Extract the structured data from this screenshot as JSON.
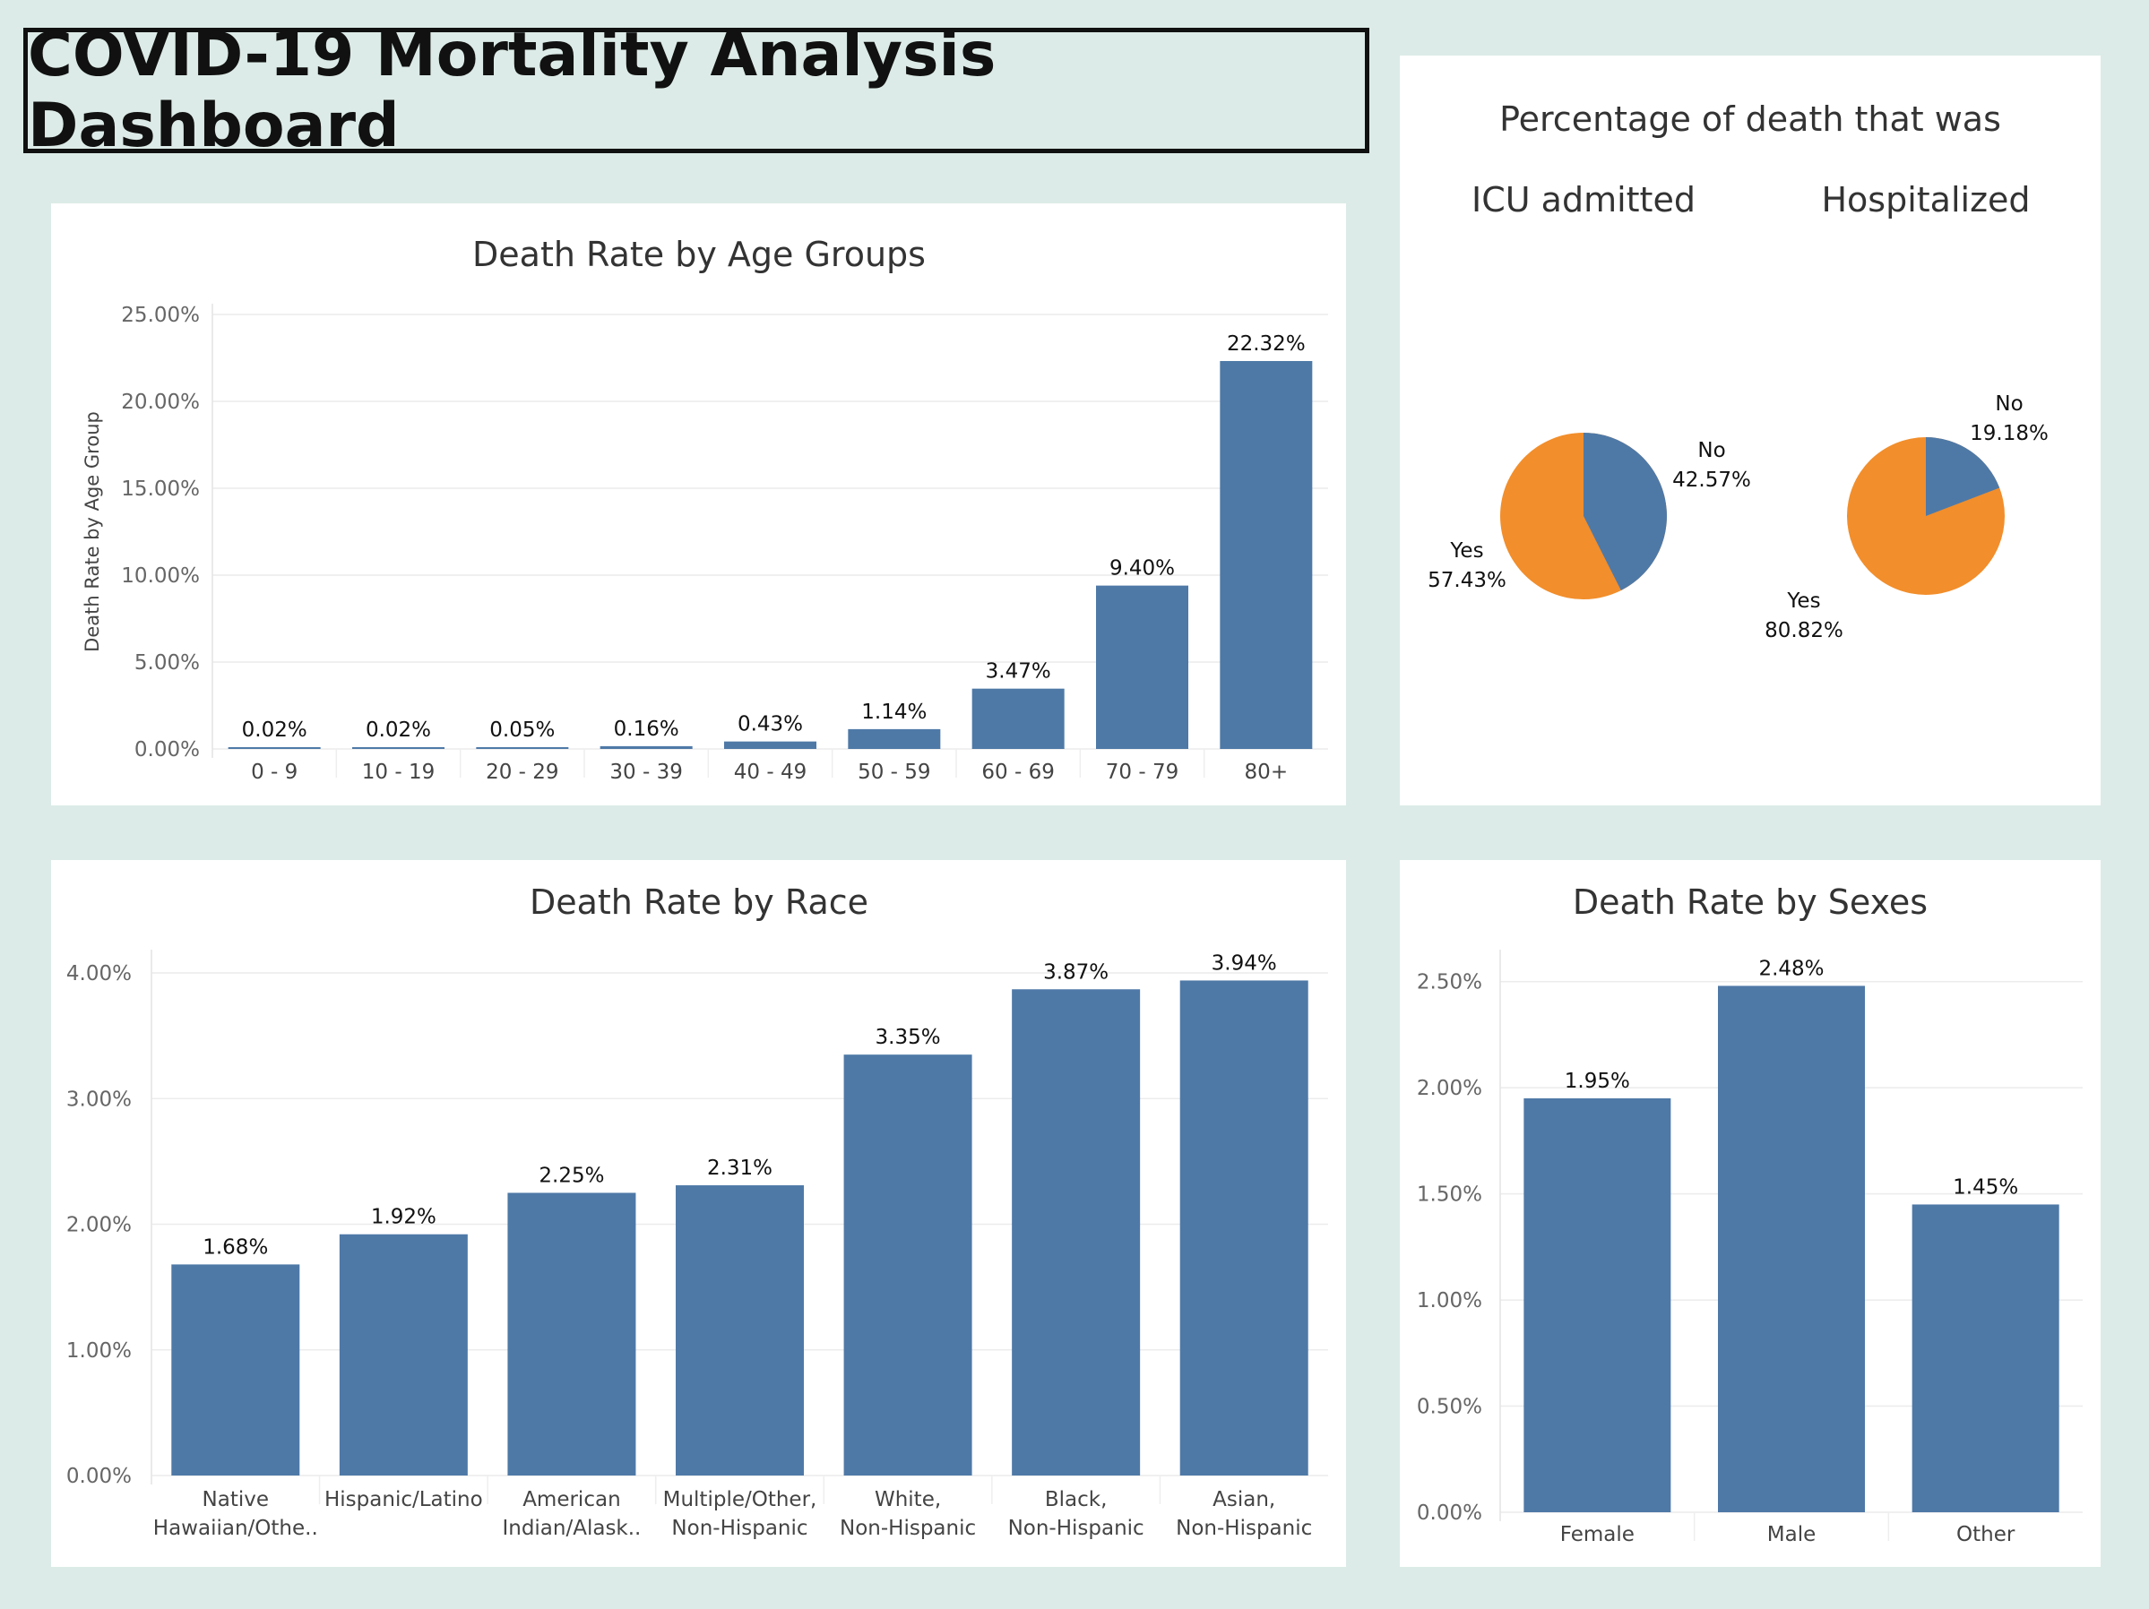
{
  "dashboard": {
    "title": "COVID-19 Mortality Analysis Dashboard"
  },
  "colors": {
    "bar": "#4e79a7",
    "yes": "#f28e2b",
    "no": "#4e79a7",
    "grid": "#ececec"
  },
  "chart_data": [
    {
      "type": "bar",
      "title": "Death Rate by Age Groups",
      "ylabel": "Death Rate by Age Group",
      "xlabel": "",
      "categories": [
        "0 - 9",
        "10 - 19",
        "20 - 29",
        "30 - 39",
        "40 - 49",
        "50 - 59",
        "60 - 69",
        "70 - 79",
        "80+"
      ],
      "values": [
        0.02,
        0.02,
        0.05,
        0.16,
        0.43,
        1.14,
        3.47,
        9.4,
        22.32
      ],
      "value_labels": [
        "0.02%",
        "0.02%",
        "0.05%",
        "0.16%",
        "0.43%",
        "1.14%",
        "3.47%",
        "9.40%",
        "22.32%"
      ],
      "yticks": [
        "0.00%",
        "5.00%",
        "10.00%",
        "15.00%",
        "20.00%",
        "25.00%"
      ],
      "ylim": [
        0,
        25
      ]
    },
    {
      "type": "pie",
      "title": "Percentage of death that was",
      "pies": [
        {
          "title": "ICU admitted",
          "slices": [
            {
              "label": "No",
              "value": 42.57,
              "value_label": "42.57%"
            },
            {
              "label": "Yes",
              "value": 57.43,
              "value_label": "57.43%"
            }
          ]
        },
        {
          "title": "Hospitalized",
          "slices": [
            {
              "label": "No",
              "value": 19.18,
              "value_label": "19.18%"
            },
            {
              "label": "Yes",
              "value": 80.82,
              "value_label": "80.82%"
            }
          ]
        }
      ]
    },
    {
      "type": "bar",
      "title": "Death Rate by Race",
      "xlabel": "",
      "ylabel": "",
      "categories": [
        [
          "Native",
          "Hawaiian/Othe.."
        ],
        [
          "Hispanic/Latino"
        ],
        [
          "American",
          "Indian/Alask.."
        ],
        [
          "Multiple/Other,",
          "Non-Hispanic"
        ],
        [
          "White,",
          "Non-Hispanic"
        ],
        [
          "Black,",
          "Non-Hispanic"
        ],
        [
          "Asian,",
          "Non-Hispanic"
        ]
      ],
      "values": [
        1.68,
        1.92,
        2.25,
        2.31,
        3.35,
        3.87,
        3.94
      ],
      "value_labels": [
        "1.68%",
        "1.92%",
        "2.25%",
        "2.31%",
        "3.35%",
        "3.87%",
        "3.94%"
      ],
      "yticks": [
        "0.00%",
        "1.00%",
        "2.00%",
        "3.00%",
        "4.00%"
      ],
      "ylim": [
        0,
        4.1
      ]
    },
    {
      "type": "bar",
      "title": "Death Rate by Sexes",
      "xlabel": "",
      "ylabel": "",
      "categories": [
        "Female",
        "Male",
        "Other"
      ],
      "values": [
        1.95,
        2.48,
        1.45
      ],
      "value_labels": [
        "1.95%",
        "2.48%",
        "1.45%"
      ],
      "yticks": [
        "0.00%",
        "0.50%",
        "1.00%",
        "1.50%",
        "2.00%",
        "2.50%"
      ],
      "ylim": [
        0,
        2.6
      ]
    }
  ]
}
